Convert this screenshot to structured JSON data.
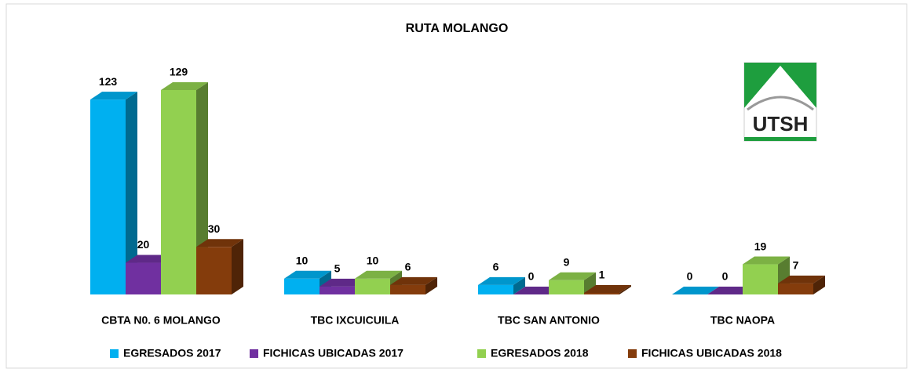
{
  "chart_data": {
    "type": "bar3d",
    "title": "RUTA MOLANGO",
    "logo": "UTSH",
    "categories": [
      "CBTA N0. 6 MOLANGO",
      "TBC IXCUICUILA",
      "TBC SAN ANTONIO",
      "TBC NAOPA"
    ],
    "series": [
      {
        "name": "EGRESADOS 2017",
        "color": "#00b0f0",
        "values": [
          123,
          10,
          6,
          0
        ]
      },
      {
        "name": "FICHICAS UBICADAS 2017",
        "color": "#7030a0",
        "values": [
          20,
          5,
          0,
          0
        ]
      },
      {
        "name": "EGRESADOS 2018",
        "color": "#92d050",
        "values": [
          129,
          10,
          9,
          19
        ]
      },
      {
        "name": "FICHICAS UBICADAS 2018",
        "color": "#843c0c",
        "values": [
          30,
          6,
          1,
          7
        ]
      }
    ],
    "legend": "bottom"
  }
}
